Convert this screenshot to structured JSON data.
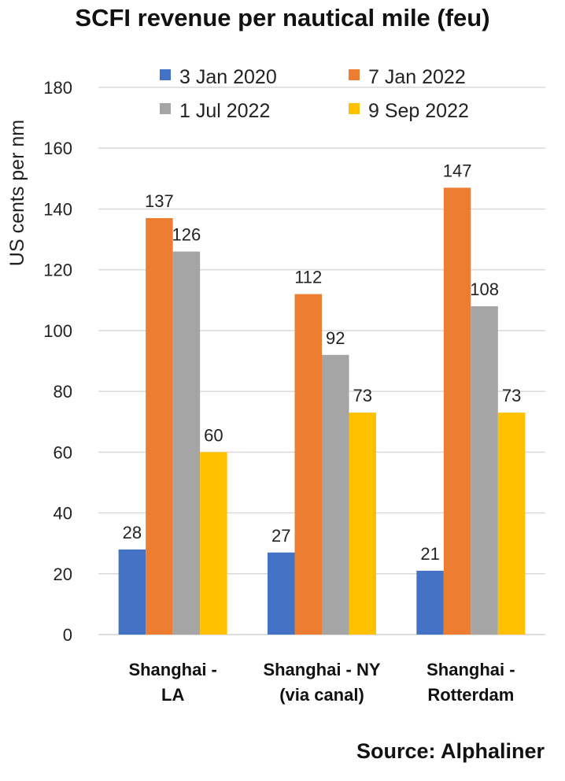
{
  "chart_data": {
    "type": "bar",
    "title": "SCFI revenue per nautical mile (feu)",
    "ylabel": "US cents per nm",
    "xlabel": "",
    "ylim": [
      0,
      180
    ],
    "yticks": [
      0,
      20,
      40,
      60,
      80,
      100,
      120,
      140,
      160,
      180
    ],
    "grid": true,
    "legend_position": "top",
    "categories": [
      [
        "Shanghai -",
        "LA"
      ],
      [
        "Shanghai - NY",
        "(via canal)"
      ],
      [
        "Shanghai -",
        "Rotterdam"
      ]
    ],
    "series": [
      {
        "name": "3 Jan 2020",
        "color": "#4472C4",
        "values": [
          28,
          27,
          21
        ]
      },
      {
        "name": "7 Jan 2022",
        "color": "#ED7D31",
        "values": [
          137,
          112,
          147
        ]
      },
      {
        "name": "1 Jul 2022",
        "color": "#A5A5A5",
        "values": [
          126,
          92,
          108
        ]
      },
      {
        "name": "9 Sep 2022",
        "color": "#FFC000",
        "values": [
          60,
          73,
          73
        ]
      }
    ],
    "source": "Source: Alphaliner"
  }
}
